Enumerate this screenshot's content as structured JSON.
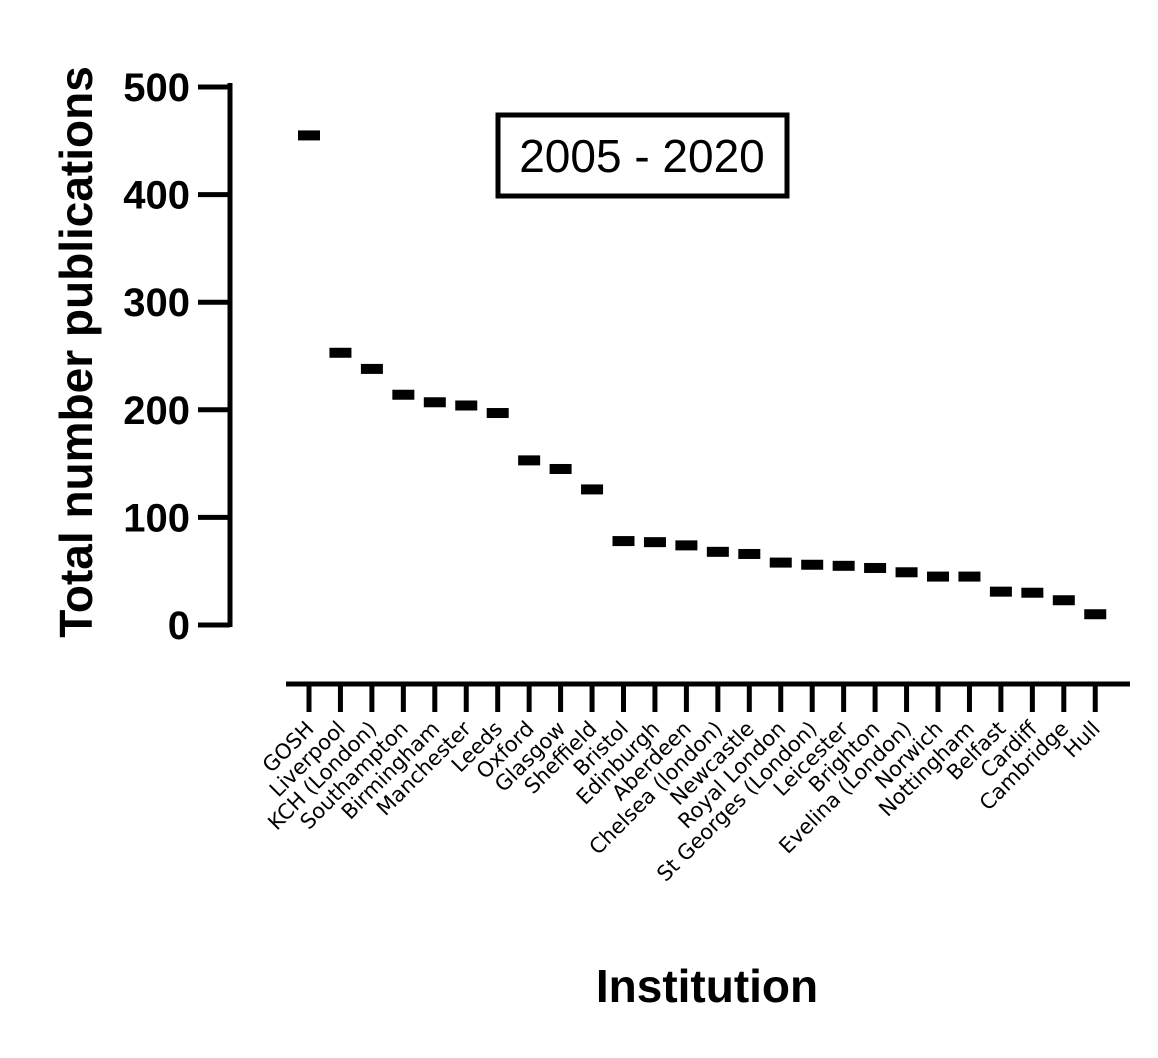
{
  "chart_data": {
    "type": "scatter",
    "title": "",
    "annotation": "2005 - 2020",
    "xlabel": "Institution",
    "ylabel": "Total number publications",
    "ylim": [
      0,
      500
    ],
    "yticks": [
      0,
      100,
      200,
      300,
      400,
      500
    ],
    "grid": false,
    "legend": "none",
    "marker": "horizontal-dash",
    "color": "#000000",
    "categories": [
      "GOSH",
      "Liverpool",
      "KCH (London)",
      "Southampton",
      "Birmingham",
      "Manchester",
      "Leeds",
      "Oxford",
      "Glasgow",
      "Sheffield",
      "Bristol",
      "Edinburgh",
      "Aberdeen",
      "Chelsea (london)",
      "Newcastle",
      "Royal London",
      "St Georges (London)",
      "Leicester",
      "Brighton",
      "Evelina (London)",
      "Norwich",
      "Nottingham",
      "Belfast",
      "Cardiff",
      "Cambridge",
      "Hull"
    ],
    "values": [
      455,
      253,
      238,
      214,
      207,
      204,
      197,
      153,
      145,
      126,
      78,
      77,
      74,
      68,
      66,
      58,
      56,
      55,
      53,
      49,
      45,
      45,
      31,
      30,
      23,
      10
    ]
  }
}
